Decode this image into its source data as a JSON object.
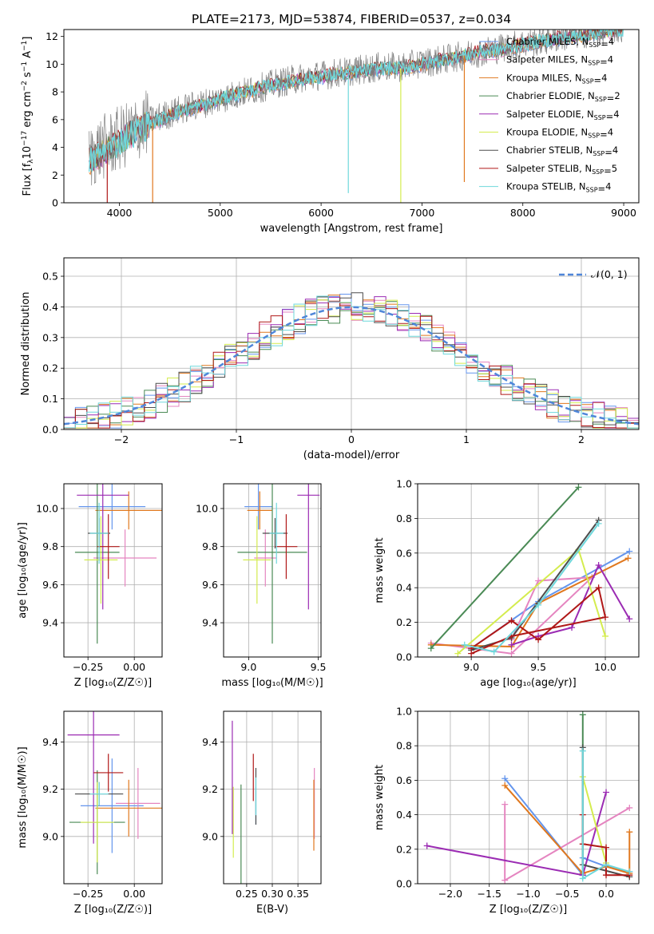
{
  "figure_title": "PLATE=2173, MJD=53874, FIBERID=0537, z=0.034",
  "colors": {
    "Chabrier MILES": "#6495ed",
    "Salpeter MILES": "#e585c0",
    "Kroupa MILES": "#e0781e",
    "Chabrier ELODIE": "#4a8a55",
    "Salpeter ELODIE": "#9b2bb3",
    "Kroupa ELODIE": "#d4ec4e",
    "Chabrier STELIB": "#4d4d4d",
    "Salpeter STELIB": "#b01818",
    "Kroupa STELIB": "#6ed8dc",
    "gaussian": "#4f86d9",
    "grid": "#b0b0b0"
  },
  "chart_data": [
    {
      "id": "spectrum",
      "type": "line",
      "title": "PLATE=2173, MJD=53874, FIBERID=0537, z=0.034",
      "xlabel": "wavelength [Angstrom, rest frame]",
      "ylabel_parts": [
        "Flux [f",
        "λ",
        "10",
        "−17",
        " erg cm",
        "−2",
        " s",
        "−1",
        " A",
        "−1",
        "]"
      ],
      "xlim": [
        3450,
        9150
      ],
      "ylim": [
        0,
        12.5
      ],
      "xticks": [
        4000,
        5000,
        6000,
        7000,
        8000,
        9000
      ],
      "yticks": [
        0,
        2,
        4,
        6,
        8,
        10,
        12
      ],
      "grid": false,
      "legend_position": "top-right",
      "legend": [
        {
          "label": "Chabrier MILES",
          "nssp": "4",
          "color": "#6495ed"
        },
        {
          "label": "Salpeter MILES",
          "nssp": "4",
          "color": "#e585c0"
        },
        {
          "label": "Kroupa MILES",
          "nssp": "4",
          "color": "#e0781e"
        },
        {
          "label": "Chabrier ELODIE",
          "nssp": "2",
          "color": "#4a8a55"
        },
        {
          "label": "Salpeter ELODIE",
          "nssp": "4",
          "color": "#9b2bb3"
        },
        {
          "label": "Kroupa ELODIE",
          "nssp": "4",
          "color": "#d4ec4e"
        },
        {
          "label": "Chabrier STELIB",
          "nssp": "4",
          "color": "#4d4d4d"
        },
        {
          "label": "Salpeter STELIB",
          "nssp": "5",
          "color": "#b01818"
        },
        {
          "label": "Kroupa STELIB",
          "nssp": "4",
          "color": "#6ed8dc"
        }
      ],
      "data_curve": {
        "name": "data",
        "x": [
          3700,
          3800,
          3900,
          4000,
          4100,
          4200,
          4300,
          4400,
          4500,
          4600,
          4700,
          4800,
          4900,
          5000,
          5200,
          5400,
          5600,
          5800,
          6000,
          6200,
          6400,
          6600,
          6800,
          7000,
          7200,
          7400,
          7600,
          7800,
          8000,
          8200,
          8400,
          8600,
          8800,
          9000
        ],
        "y": [
          3.2,
          3.9,
          4.2,
          4.6,
          5.0,
          5.5,
          5.9,
          6.2,
          6.4,
          6.7,
          6.9,
          7.1,
          7.3,
          7.5,
          7.9,
          8.3,
          8.7,
          9.0,
          9.2,
          9.4,
          9.6,
          9.8,
          9.8,
          10.1,
          10.3,
          10.6,
          10.9,
          11.2,
          11.5,
          11.7,
          12.0,
          12.2,
          12.4,
          12.6
        ]
      },
      "model_curve": {
        "name": "Kroupa STELIB",
        "x": [
          3700,
          3800,
          3900,
          4000,
          4100,
          4200,
          4300,
          4400,
          4500,
          4600,
          4700,
          4800,
          4900,
          5000,
          5200,
          5400,
          5600,
          5800,
          6000,
          6200,
          6400,
          6600,
          6800,
          7000,
          7200,
          7400,
          7600,
          7800,
          8000,
          8200,
          8400,
          8600,
          8800,
          9000
        ],
        "y": [
          2.9,
          3.5,
          3.9,
          4.4,
          4.9,
          5.3,
          5.7,
          6.0,
          6.3,
          6.6,
          6.8,
          7.0,
          7.2,
          7.5,
          7.9,
          8.3,
          8.6,
          8.9,
          9.1,
          9.3,
          9.5,
          9.7,
          9.7,
          10.0,
          10.3,
          10.6,
          10.9,
          11.1,
          11.4,
          11.7,
          11.9,
          12.1,
          12.3,
          12.5
        ]
      },
      "dips": [
        {
          "x": 3880,
          "min": 0,
          "color": "#b01818"
        },
        {
          "x": 4330,
          "min": 0,
          "color": "#e0781e"
        },
        {
          "x": 6270,
          "min": 0.7,
          "color": "#6ed8dc"
        },
        {
          "x": 6790,
          "min": 0,
          "color": "#d4ec4e"
        },
        {
          "x": 7420,
          "min": 1.5,
          "color": "#e0781e"
        }
      ]
    },
    {
      "id": "residuals",
      "type": "histogram",
      "xlabel": "(data-model)/error",
      "ylabel": "Normed distribution",
      "xlim": [
        -2.5,
        2.5
      ],
      "ylim": [
        0,
        0.56
      ],
      "xticks": [
        -2,
        -1,
        0,
        1,
        2
      ],
      "xtick_labels": [
        "−2",
        "−1",
        "0",
        "1",
        "2"
      ],
      "yticks": [
        0.0,
        0.1,
        0.2,
        0.3,
        0.4,
        0.5
      ],
      "ytick_labels": [
        "0.0",
        "0.1",
        "0.2",
        "0.3",
        "0.4",
        "0.5"
      ],
      "grid": true,
      "legend_position": "top-right",
      "legend": [
        {
          "label": "𝒩(0, 1)",
          "color": "#4f86d9",
          "dashed": true
        }
      ],
      "bin_width": 0.1,
      "curve": {
        "name": "𝒩(0, 1)",
        "type": "gaussian",
        "mu": 0,
        "sigma": 1
      },
      "series_jitter_amplitude": 0.05
    },
    {
      "id": "age-vs-Z",
      "type": "errorbar",
      "xlabel": "Z [log₁₀(Z/Z☉)]",
      "ylabel": "age  [log₁₀(age/yr)]",
      "xlim": [
        -0.38,
        0.15
      ],
      "ylim": [
        9.22,
        10.13
      ],
      "xticks": [
        -0.25,
        0.0
      ],
      "xtick_labels": [
        "−0.25",
        "0.00"
      ],
      "yticks": [
        9.4,
        9.6,
        9.8,
        10.0
      ],
      "ytick_labels": [
        "9.4",
        "9.6",
        "9.8",
        "10.0"
      ],
      "grid": true,
      "points": [
        {
          "series": "Chabrier MILES",
          "x": -0.12,
          "xerr": 0.18,
          "y": 10.01,
          "yerr": 0.12
        },
        {
          "series": "Salpeter MILES",
          "x": -0.05,
          "xerr": 0.17,
          "y": 9.74,
          "yerr": 0.15
        },
        {
          "series": "Kroupa MILES",
          "x": -0.03,
          "xerr": 0.18,
          "y": 9.99,
          "yerr": 0.1
        },
        {
          "series": "Chabrier ELODIE",
          "x": -0.2,
          "xerr": 0.12,
          "y": 9.77,
          "yerr": 0.48
        },
        {
          "series": "Salpeter ELODIE",
          "x": -0.17,
          "xerr": 0.14,
          "y": 10.07,
          "yerr": 0.6
        },
        {
          "series": "Kroupa ELODIE",
          "x": -0.18,
          "xerr": 0.09,
          "y": 9.73,
          "yerr": 0.23
        },
        {
          "series": "Chabrier STELIB",
          "x": -0.19,
          "xerr": 0.06,
          "y": 9.87,
          "yerr": 0.08
        },
        {
          "series": "Salpeter STELIB",
          "x": -0.14,
          "xerr": 0.06,
          "y": 9.8,
          "yerr": 0.17
        },
        {
          "series": "Kroupa STELIB",
          "x": -0.19,
          "xerr": 0.05,
          "y": 9.87,
          "yerr": 0.16
        }
      ]
    },
    {
      "id": "age-vs-mass",
      "type": "errorbar",
      "xlabel": "mass [log₁₀(M/M☉)]",
      "ylabel": "",
      "xlim": [
        8.82,
        9.52
      ],
      "ylim": [
        9.22,
        10.13
      ],
      "xticks": [
        9.0,
        9.5
      ],
      "xtick_labels": [
        "9.0",
        "9.5"
      ],
      "yticks": [
        9.4,
        9.6,
        9.8,
        10.0
      ],
      "ytick_labels": [
        "9.4",
        "9.6",
        "9.8",
        "10.0"
      ],
      "grid": true,
      "points": [
        {
          "series": "Chabrier MILES",
          "x": 9.07,
          "xerr": 0.1,
          "y": 10.01,
          "yerr": 0.12
        },
        {
          "series": "Salpeter MILES",
          "x": 9.12,
          "xerr": 0.08,
          "y": 9.74,
          "yerr": 0.15
        },
        {
          "series": "Kroupa MILES",
          "x": 9.08,
          "xerr": 0.09,
          "y": 9.99,
          "yerr": 0.1
        },
        {
          "series": "Chabrier ELODIE",
          "x": 9.17,
          "xerr": 0.25,
          "y": 9.77,
          "yerr": 0.48
        },
        {
          "series": "Salpeter ELODIE",
          "x": 9.43,
          "xerr": 0.08,
          "y": 10.07,
          "yerr": 0.6
        },
        {
          "series": "Kroupa ELODIE",
          "x": 9.06,
          "xerr": 0.1,
          "y": 9.73,
          "yerr": 0.23
        },
        {
          "series": "Chabrier STELIB",
          "x": 9.19,
          "xerr": 0.09,
          "y": 9.87,
          "yerr": 0.08
        },
        {
          "series": "Salpeter STELIB",
          "x": 9.27,
          "xerr": 0.08,
          "y": 9.8,
          "yerr": 0.17
        },
        {
          "series": "Kroupa STELIB",
          "x": 9.2,
          "xerr": 0.05,
          "y": 9.87,
          "yerr": 0.16
        }
      ]
    },
    {
      "id": "weight-vs-age",
      "type": "line",
      "xlabel": "age  [log₁₀(age/yr)]",
      "ylabel": "mass weight",
      "xlim": [
        8.6,
        10.25
      ],
      "ylim": [
        0,
        1
      ],
      "xticks": [
        9.0,
        9.5,
        10.0
      ],
      "xtick_labels": [
        "9.0",
        "9.5",
        "10.0"
      ],
      "yticks": [
        0.0,
        0.2,
        0.4,
        0.6,
        0.8,
        1.0
      ],
      "ytick_labels": [
        "0.0",
        "0.2",
        "0.4",
        "0.6",
        "0.8",
        "1.0"
      ],
      "grid": true,
      "series": [
        {
          "name": "Chabrier MILES",
          "x": [
            9.0,
            9.5,
            10.18
          ],
          "y": [
            0.05,
            0.32,
            0.61
          ]
        },
        {
          "name": "Salpeter MILES",
          "x": [
            8.7,
            9.3,
            9.9,
            9.5,
            9.3
          ],
          "y": [
            0.08,
            0.02,
            0.46,
            0.44,
            0.1
          ]
        },
        {
          "name": "Kroupa MILES",
          "x": [
            8.7,
            9.3,
            9.5,
            10.17
          ],
          "y": [
            0.07,
            0.06,
            0.31,
            0.57
          ]
        },
        {
          "name": "Chabrier ELODIE",
          "x": [
            8.7,
            9.8
          ],
          "y": [
            0.05,
            0.98
          ]
        },
        {
          "name": "Salpeter ELODIE",
          "x": [
            9.3,
            9.5,
            9.75,
            9.95,
            10.18
          ],
          "y": [
            0.07,
            0.12,
            0.17,
            0.53,
            0.22
          ]
        },
        {
          "name": "Kroupa ELODIE",
          "x": [
            8.9,
            9.8,
            10.0
          ],
          "y": [
            0.02,
            0.62,
            0.12
          ]
        },
        {
          "name": "Chabrier STELIB",
          "x": [
            9.0,
            9.3,
            9.95
          ],
          "y": [
            0.04,
            0.11,
            0.79
          ]
        },
        {
          "name": "Salpeter STELIB",
          "x": [
            9.0,
            9.3,
            9.5,
            9.95,
            10.0,
            9.3,
            9.0
          ],
          "y": [
            0.05,
            0.21,
            0.1,
            0.4,
            0.23,
            0.12,
            0.02
          ]
        },
        {
          "name": "Kroupa STELIB",
          "x": [
            8.95,
            9.17,
            9.5,
            9.95
          ],
          "y": [
            0.07,
            0.03,
            0.3,
            0.77
          ]
        }
      ]
    },
    {
      "id": "mass-vs-Z",
      "type": "errorbar",
      "xlabel": "Z [log₁₀(Z/Z☉)]",
      "ylabel": "mass [log₁₀(M/M☉)]",
      "xlim": [
        -0.38,
        0.15
      ],
      "ylim": [
        8.8,
        9.53
      ],
      "xticks": [
        -0.25,
        0.0
      ],
      "xtick_labels": [
        "−0.25",
        "0.00"
      ],
      "yticks": [
        9.0,
        9.2,
        9.4
      ],
      "ytick_labels": [
        "9.0",
        "9.2",
        "9.4"
      ],
      "grid": true,
      "points": [
        {
          "series": "Chabrier MILES",
          "x": -0.12,
          "xerr": 0.17,
          "y": 9.13,
          "yerr": 0.2
        },
        {
          "series": "Salpeter MILES",
          "x": 0.02,
          "xerr": 0.12,
          "y": 9.14,
          "yerr": 0.15
        },
        {
          "series": "Kroupa MILES",
          "x": -0.03,
          "xerr": 0.18,
          "y": 9.12,
          "yerr": 0.12
        },
        {
          "series": "Chabrier ELODIE",
          "x": -0.2,
          "xerr": 0.15,
          "y": 9.06,
          "yerr": 0.22
        },
        {
          "series": "Salpeter ELODIE",
          "x": -0.22,
          "xerr": 0.14,
          "y": 9.43,
          "yerr": 0.46
        },
        {
          "series": "Kroupa ELODIE",
          "x": -0.2,
          "xerr": 0.09,
          "y": 9.06,
          "yerr": 0.17
        },
        {
          "series": "Chabrier STELIB",
          "x": -0.19,
          "xerr": 0.13,
          "y": 9.18,
          "yerr": 0.05
        },
        {
          "series": "Salpeter STELIB",
          "x": -0.14,
          "xerr": 0.08,
          "y": 9.27,
          "yerr": 0.08
        },
        {
          "series": "Kroupa STELIB",
          "x": -0.19,
          "xerr": 0.05,
          "y": 9.18,
          "yerr": 0.05
        }
      ]
    },
    {
      "id": "mass-vs-ebv",
      "type": "errorbar",
      "xlabel": "E(B-V)",
      "ylabel": "",
      "xlim": [
        0.205,
        0.395
      ],
      "ylim": [
        8.8,
        9.53
      ],
      "xticks": [
        0.25,
        0.3,
        0.35
      ],
      "xtick_labels": [
        "0.25",
        "0.30",
        "0.35"
      ],
      "yticks": [
        9.0,
        9.2,
        9.4
      ],
      "ytick_labels": [
        "9.0",
        "9.2",
        "9.4"
      ],
      "grid": true,
      "points": [
        {
          "series": "Chabrier MILES",
          "x": 0.268,
          "xerr": 0.0,
          "y": 9.13,
          "yerr": 0.08
        },
        {
          "series": "Salpeter MILES",
          "x": 0.382,
          "xerr": 0.0,
          "y": 9.14,
          "yerr": 0.15
        },
        {
          "series": "Kroupa MILES",
          "x": 0.381,
          "xerr": 0.0,
          "y": 9.09,
          "yerr": 0.15
        },
        {
          "series": "Chabrier ELODIE",
          "x": 0.239,
          "xerr": 0.0,
          "y": 9.0,
          "yerr": 0.22
        },
        {
          "series": "Salpeter ELODIE",
          "x": 0.222,
          "xerr": 0.0,
          "y": 9.25,
          "yerr": 0.24
        },
        {
          "series": "Kroupa ELODIE",
          "x": 0.224,
          "xerr": 0.0,
          "y": 9.06,
          "yerr": 0.15
        },
        {
          "series": "Chabrier STELIB",
          "x": 0.268,
          "xerr": 0.0,
          "y": 9.17,
          "yerr": 0.12
        },
        {
          "series": "Salpeter STELIB",
          "x": 0.263,
          "xerr": 0.0,
          "y": 9.25,
          "yerr": 0.1
        },
        {
          "series": "Kroupa STELIB",
          "x": 0.268,
          "xerr": 0.0,
          "y": 9.17,
          "yerr": 0.08
        }
      ]
    },
    {
      "id": "weight-vs-Z",
      "type": "line",
      "xlabel": "Z [log₁₀(Z/Z☉)]",
      "ylabel": "mass weight",
      "xlim": [
        -2.42,
        0.42
      ],
      "ylim": [
        0,
        1
      ],
      "xticks": [
        -2.0,
        -1.5,
        -1.0,
        -0.5,
        0.0
      ],
      "xtick_labels": [
        "−2.0",
        "−1.5",
        "−1.0",
        "−0.5",
        "0.0"
      ],
      "yticks": [
        0.0,
        0.2,
        0.4,
        0.6,
        0.8,
        1.0
      ],
      "ytick_labels": [
        "0.0",
        "0.2",
        "0.4",
        "0.6",
        "0.8",
        "1.0"
      ],
      "grid": true,
      "series": [
        {
          "name": "Chabrier MILES",
          "x": [
            -1.3,
            -0.3,
            -0.3,
            0.0,
            0.3
          ],
          "y": [
            0.61,
            0.05,
            0.15,
            0.1,
            0.07
          ]
        },
        {
          "name": "Salpeter MILES",
          "x": [
            -1.3,
            -1.3,
            0.3
          ],
          "y": [
            0.46,
            0.02,
            0.44
          ]
        },
        {
          "name": "Kroupa MILES",
          "x": [
            -1.3,
            -0.3,
            0.0,
            0.3,
            0.3
          ],
          "y": [
            0.57,
            0.06,
            0.1,
            0.06,
            0.3
          ]
        },
        {
          "name": "Chabrier ELODIE",
          "x": [
            -0.3,
            -0.3
          ],
          "y": [
            0.98,
            0.05
          ]
        },
        {
          "name": "Salpeter ELODIE",
          "x": [
            -2.3,
            -0.3,
            0.0
          ],
          "y": [
            0.22,
            0.05,
            0.53
          ]
        },
        {
          "name": "Kroupa ELODIE",
          "x": [
            -0.3,
            0.0
          ],
          "y": [
            0.62,
            0.12
          ]
        },
        {
          "name": "Chabrier STELIB",
          "x": [
            -0.3,
            -0.3,
            0.3
          ],
          "y": [
            0.79,
            0.11,
            0.04
          ]
        },
        {
          "name": "Salpeter STELIB",
          "x": [
            -0.3,
            -0.3,
            0.0,
            0.0,
            0.3
          ],
          "y": [
            0.4,
            0.23,
            0.21,
            0.05,
            0.05
          ]
        },
        {
          "name": "Kroupa STELIB",
          "x": [
            -0.3,
            -0.3,
            0.0,
            0.3
          ],
          "y": [
            0.77,
            0.03,
            0.11,
            0.07
          ]
        }
      ]
    }
  ]
}
